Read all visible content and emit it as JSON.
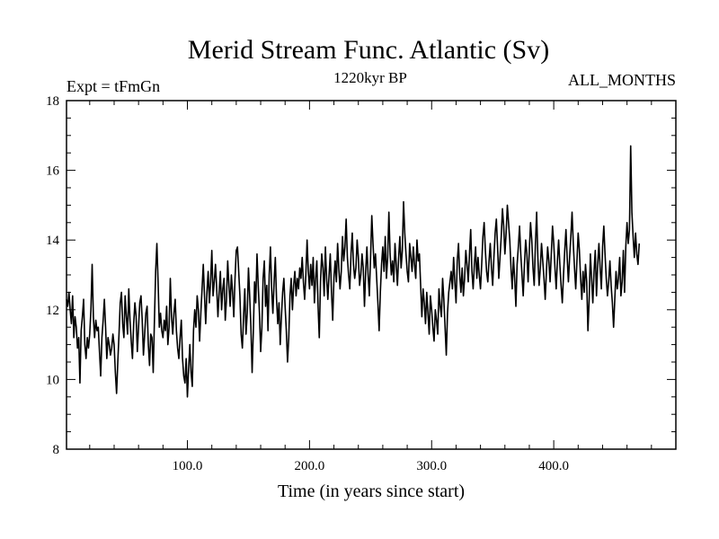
{
  "chart_data": {
    "type": "line",
    "title": "Merid Stream Func. Atlantic (Sv)",
    "subtitle": "1220kyr BP",
    "annotation_left": "Expt = tFmGn",
    "annotation_right": "ALL_MONTHS",
    "xlabel": "Time (in years since start)",
    "ylabel": "",
    "xlim": [
      1,
      500
    ],
    "ylim": [
      8,
      18
    ],
    "x_ticks": [
      100,
      200,
      300,
      400
    ],
    "x_tick_labels": [
      "100.0",
      "200.0",
      "300.0",
      "400.0"
    ],
    "y_ticks": [
      8,
      10,
      12,
      14,
      16,
      18
    ],
    "y_tick_labels": [
      "8",
      "10",
      "12",
      "14",
      "16",
      "18"
    ],
    "grid": false,
    "line_color": "#000000",
    "series": [
      {
        "name": "Merid Stream Func. Atlantic",
        "x_start": 1,
        "x_step": 1,
        "values": [
          12.3,
          12.1,
          12.5,
          12.0,
          11.6,
          12.4,
          11.2,
          11.8,
          11.5,
          10.9,
          11.2,
          9.9,
          11.4,
          11.8,
          12.3,
          11.0,
          10.6,
          11.2,
          10.9,
          11.3,
          12.0,
          13.3,
          11.8,
          11.2,
          11.7,
          11.4,
          11.5,
          10.8,
          10.1,
          11.2,
          11.7,
          12.3,
          11.5,
          10.6,
          11.2,
          11.0,
          10.7,
          10.9,
          11.3,
          11.0,
          10.2,
          9.6,
          10.5,
          11.3,
          12.2,
          12.5,
          11.6,
          11.2,
          12.4,
          11.8,
          11.3,
          12.6,
          11.7,
          11.1,
          10.6,
          11.6,
          12.2,
          11.8,
          10.8,
          11.5,
          12.2,
          12.4,
          11.7,
          10.7,
          11.3,
          11.9,
          12.1,
          11.0,
          10.4,
          11.3,
          11.2,
          10.2,
          11.7,
          13.1,
          13.9,
          12.8,
          11.5,
          11.9,
          11.4,
          11.2,
          11.7,
          11.4,
          12.1,
          11.0,
          11.5,
          12.9,
          11.8,
          11.3,
          11.9,
          12.3,
          11.4,
          10.9,
          10.6,
          11.2,
          11.7,
          10.6,
          10.1,
          9.9,
          10.6,
          9.5,
          10.3,
          11.0,
          10.2,
          9.8,
          11.4,
          12.0,
          11.5,
          12.4,
          12.0,
          11.1,
          11.9,
          12.6,
          13.3,
          12.4,
          11.6,
          12.5,
          13.1,
          12.2,
          12.8,
          13.7,
          12.4,
          12.8,
          13.3,
          12.6,
          11.8,
          12.5,
          13.1,
          12.0,
          12.6,
          12.9,
          11.7,
          12.3,
          13.4,
          12.7,
          12.1,
          13.0,
          12.5,
          11.8,
          12.9,
          13.7,
          13.8,
          13.1,
          12.4,
          11.3,
          10.9,
          11.8,
          12.6,
          11.3,
          11.9,
          13.2,
          12.4,
          11.5,
          10.2,
          11.4,
          12.8,
          12.2,
          13.6,
          12.7,
          11.9,
          10.8,
          11.5,
          12.9,
          13.4,
          12.1,
          12.7,
          11.4,
          13.0,
          13.8,
          12.6,
          11.9,
          12.8,
          13.5,
          12.3,
          11.6,
          12.2,
          11.0,
          11.8,
          12.5,
          12.9,
          12.1,
          11.4,
          10.5,
          11.2,
          12.4,
          12.9,
          12.0,
          12.7,
          13.1,
          12.4,
          12.9,
          12.6,
          13.2,
          12.9,
          13.5,
          12.8,
          12.3,
          13.0,
          14.0,
          13.1,
          12.6,
          13.3,
          12.7,
          13.5,
          12.2,
          12.9,
          13.4,
          12.1,
          11.2,
          12.8,
          13.6,
          13.2,
          12.4,
          13.8,
          12.9,
          12.3,
          13.0,
          13.6,
          12.5,
          11.7,
          12.9,
          13.4,
          12.8,
          13.9,
          13.2,
          12.6,
          13.1,
          14.1,
          13.4,
          13.8,
          14.6,
          13.5,
          13.0,
          12.6,
          13.6,
          14.2,
          13.3,
          12.9,
          13.2,
          14.0,
          13.5,
          12.7,
          13.0,
          13.6,
          13.2,
          12.1,
          13.1,
          13.8,
          13.0,
          12.4,
          13.5,
          14.7,
          13.9,
          13.2,
          13.6,
          12.9,
          12.2,
          11.4,
          12.5,
          13.3,
          13.8,
          13.1,
          14.1,
          12.9,
          13.5,
          14.8,
          13.6,
          13.0,
          13.4,
          12.8,
          13.9,
          13.3,
          12.7,
          13.5,
          14.1,
          13.2,
          13.7,
          15.1,
          14.2,
          13.6,
          13.1,
          12.8,
          13.9,
          13.5,
          13.1,
          13.8,
          13.3,
          12.9,
          14.0,
          13.4,
          13.6,
          12.7,
          11.8,
          12.6,
          12.2,
          11.6,
          12.5,
          11.9,
          11.3,
          12.4,
          12.0,
          11.5,
          11.1,
          12.0,
          11.7,
          11.3,
          12.6,
          12.1,
          11.8,
          12.9,
          12.3,
          11.5,
          10.7,
          11.9,
          12.5,
          12.8,
          13.1,
          12.6,
          13.5,
          12.8,
          12.2,
          13.4,
          13.9,
          13.0,
          12.5,
          13.2,
          12.4,
          12.9,
          13.7,
          13.3,
          12.8,
          13.6,
          14.3,
          13.1,
          12.6,
          13.3,
          13.8,
          12.9,
          13.5,
          13.0,
          12.6,
          13.3,
          14.1,
          14.5,
          13.7,
          13.1,
          12.8,
          13.4,
          13.9,
          13.2,
          12.7,
          13.5,
          14.2,
          14.6,
          13.8,
          12.9,
          13.5,
          14.1,
          14.9,
          14.4,
          13.6,
          14.2,
          15.0,
          14.5,
          14.0,
          13.2,
          12.6,
          13.5,
          12.9,
          12.1,
          13.3,
          13.8,
          14.4,
          13.6,
          13.0,
          12.4,
          13.3,
          14.0,
          13.6,
          12.8,
          13.7,
          14.5,
          14.0,
          13.2,
          12.7,
          13.9,
          14.8,
          13.5,
          12.7,
          13.2,
          13.9,
          13.4,
          12.9,
          12.3,
          13.1,
          13.8,
          13.4,
          12.8,
          13.6,
          14.4,
          13.9,
          13.2,
          12.6,
          13.4,
          14.0,
          13.3,
          12.7,
          12.2,
          13.0,
          13.7,
          14.3,
          13.5,
          12.8,
          13.5,
          14.1,
          14.8,
          13.9,
          13.2,
          12.6,
          13.4,
          14.2,
          13.7,
          12.9,
          12.3,
          13.1,
          12.5,
          13.3,
          12.8,
          11.4,
          12.3,
          13.6,
          12.9,
          12.2,
          13.1,
          13.7,
          12.4,
          13.3,
          13.9,
          13.2,
          12.6,
          13.8,
          14.4,
          13.6,
          12.9,
          12.4,
          12.8,
          13.4,
          12.7,
          12.2,
          11.5,
          12.3,
          13.1,
          12.6,
          12.9,
          13.5,
          12.4,
          12.8,
          13.7,
          12.5,
          13.8,
          14.5,
          13.9,
          14.3,
          16.7,
          14.8,
          14.1,
          13.5,
          14.2,
          13.6,
          13.3,
          13.9
        ]
      }
    ]
  }
}
